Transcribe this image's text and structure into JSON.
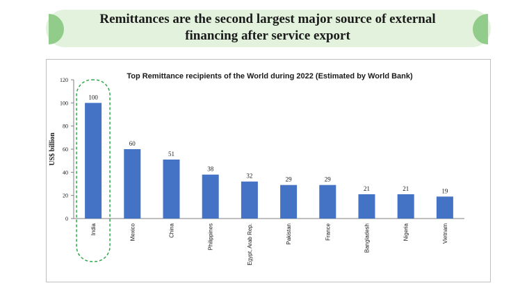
{
  "banner": {
    "title_line1": "Remittances are the second largest major source of external",
    "title_line2": "financing after service export"
  },
  "chart_data": {
    "type": "bar",
    "title": "Top Remittance recipients of the World during 2022 (Estimated by World Bank)",
    "xlabel": "",
    "ylabel": "US$ billion",
    "categories": [
      "India",
      "Mexico",
      "China",
      "Philippines",
      "Egypt, Arab Rep.",
      "Pakistan",
      "France",
      "Bangladesh",
      "Nigeria",
      "Vietnam"
    ],
    "values": [
      100,
      60,
      51,
      38,
      32,
      29,
      29,
      21,
      21,
      19
    ],
    "ylim": [
      0,
      120
    ],
    "yticks": [
      0,
      20,
      40,
      60,
      80,
      100,
      120
    ],
    "grid": false,
    "highlight": "India",
    "colors": {
      "bar": "#4472c4",
      "highlight_border": "#2ea84a",
      "banner_bg": "#e2f2dc",
      "banner_cap": "#92cc8a"
    }
  }
}
